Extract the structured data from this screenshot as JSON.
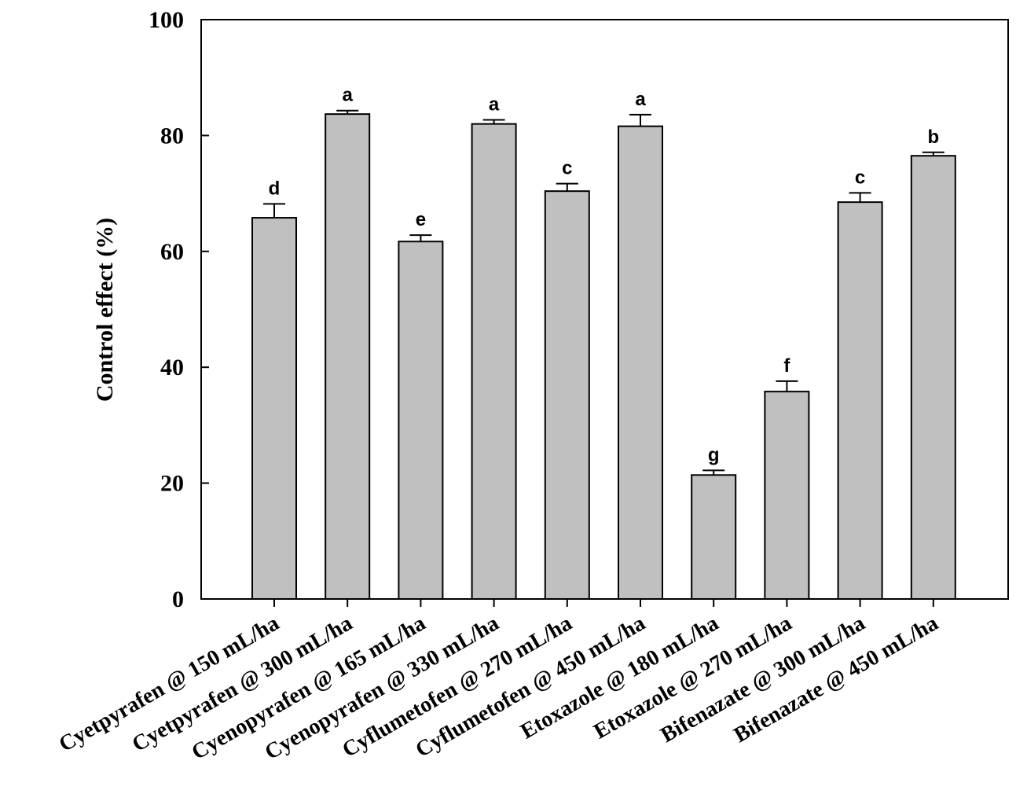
{
  "chart_data": {
    "type": "bar",
    "title": "",
    "xlabel": "",
    "ylabel": "Control effect (%)",
    "ylim": [
      0,
      100
    ],
    "yticks": [
      0,
      20,
      40,
      60,
      80,
      100
    ],
    "grid": false,
    "legend": "none",
    "bar_color": "#c0c0c0",
    "categories": [
      "Cyetpyrafen @ 150 mL/ha",
      "Cyetpyrafen @ 300 mL/ha",
      "Cyenopyrafen @ 165 mL/ha",
      "Cyenopyrafen @ 330 mL/ha",
      "Cyflumetofen @ 270 mL/ha",
      "Cyflumetofen @ 450 mL/ha",
      "Etoxazole @ 180 mL/ha",
      "Etoxazole @ 270 mL/ha",
      "Bifenazate @ 300 mL/ha",
      "Bifenazate @ 450 mL/ha"
    ],
    "values": [
      65.8,
      83.7,
      61.7,
      82.0,
      70.4,
      81.6,
      21.4,
      35.8,
      68.5,
      76.5
    ],
    "errors": [
      2.4,
      0.6,
      1.1,
      0.7,
      1.3,
      2.0,
      0.8,
      1.8,
      1.6,
      0.6
    ],
    "labels": [
      "d",
      "a",
      "e",
      "a",
      "c",
      "a",
      "g",
      "f",
      "c",
      "b"
    ]
  }
}
